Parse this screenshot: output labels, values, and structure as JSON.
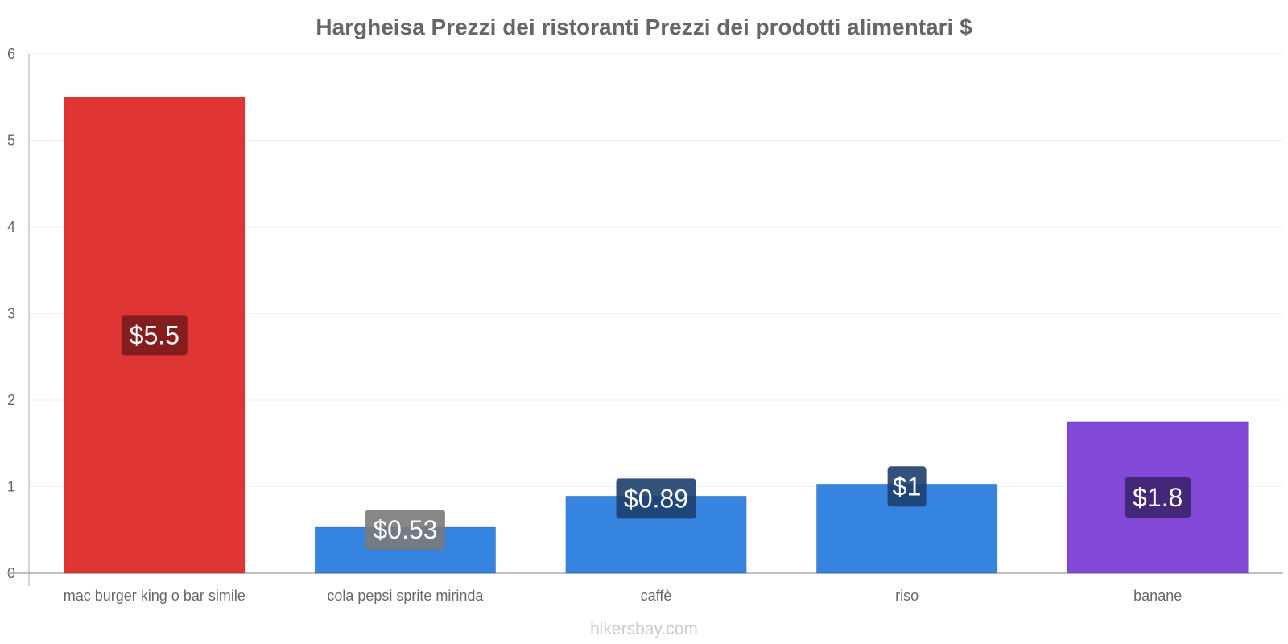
{
  "chart_data": {
    "type": "bar",
    "title": "Hargheisa Prezzi dei ristoranti Prezzi dei prodotti alimentari $",
    "categories": [
      "mac burger king o bar simile",
      "cola pepsi sprite mirinda",
      "caffè",
      "riso",
      "banane"
    ],
    "values": [
      5.5,
      0.53,
      0.89,
      1.03,
      1.75
    ],
    "data_labels": [
      "$5.5",
      "$0.53",
      "$0.89",
      "$1",
      "$1.8"
    ],
    "bar_colors": [
      "#e03535",
      "#3584e0",
      "#3584e0",
      "#3584e0",
      "#8248d8"
    ],
    "label_bg_colors": [
      "#7a1c1c",
      "#7a7a7a",
      "#1c3f6e",
      "#1c3f6e",
      "#3e2470"
    ],
    "ylim": [
      0,
      6
    ],
    "yticks": [
      0,
      1,
      2,
      3,
      4,
      5,
      6
    ],
    "xlabel": "",
    "ylabel": "",
    "grid": true
  },
  "watermark": "hikersbay.com"
}
